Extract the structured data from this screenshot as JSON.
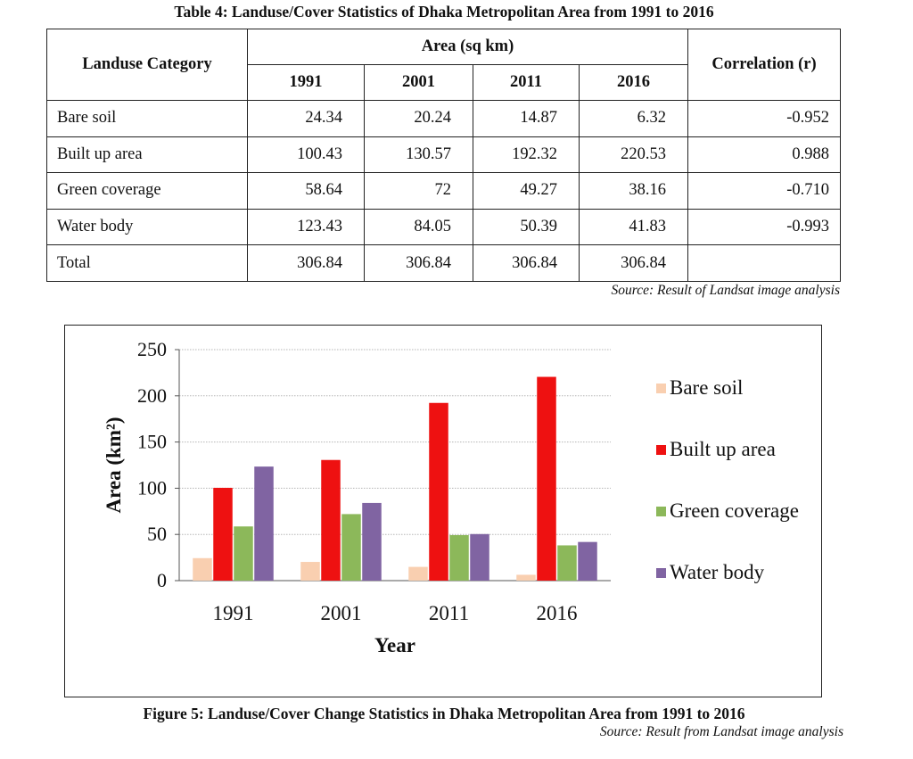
{
  "table": {
    "title": "Table 4: Landuse/Cover Statistics of Dhaka  Metropolitan Area from 1991 to 2016",
    "header_category": "Landuse Category",
    "header_area": "Area (sq km)",
    "header_correlation": "Correlation (r)",
    "years": [
      "1991",
      "2001",
      "2011",
      "2016"
    ],
    "rows": [
      {
        "category": "Bare soil",
        "values": [
          "24.34",
          "20.24",
          "14.87",
          "6.32"
        ],
        "correlation": "-0.952"
      },
      {
        "category": "Built up area",
        "values": [
          "100.43",
          "130.57",
          "192.32",
          "220.53"
        ],
        "correlation": "0.988"
      },
      {
        "category": "Green coverage",
        "values": [
          "58.64",
          "72",
          "49.27",
          "38.16"
        ],
        "correlation": "-0.710"
      },
      {
        "category": "Water body",
        "values": [
          "123.43",
          "84.05",
          "50.39",
          "41.83"
        ],
        "correlation": "-0.993"
      },
      {
        "category": "Total",
        "values": [
          "306.84",
          "306.84",
          "306.84",
          "306.84"
        ],
        "correlation": ""
      }
    ],
    "source": "Source: Result of Landsat image analysis"
  },
  "figure": {
    "caption": "Figure 5: Landuse/Cover Change Statistics in Dhaka Metropolitan Area from 1991 to 2016",
    "source": "Source: Result from Landsat image analysis"
  },
  "chart_data": {
    "type": "bar",
    "title": "",
    "xlabel": "Year",
    "ylabel": "Area (km²)",
    "ylim": [
      0,
      250
    ],
    "yticks": [
      0,
      50,
      100,
      150,
      200,
      250
    ],
    "grid": true,
    "legend_position": "right",
    "categories": [
      "1991",
      "2001",
      "2011",
      "2016"
    ],
    "series": [
      {
        "name": "Bare soil",
        "color": "#f9cfb0",
        "values": [
          24.34,
          20.24,
          14.87,
          6.32
        ]
      },
      {
        "name": "Built up area",
        "color": "#ee1111",
        "values": [
          100.43,
          130.57,
          192.32,
          220.53
        ]
      },
      {
        "name": "Green coverage",
        "color": "#8cb85a",
        "values": [
          58.64,
          72,
          49.27,
          38.16
        ]
      },
      {
        "name": "Water body",
        "color": "#8064a2",
        "values": [
          123.43,
          84.05,
          50.39,
          41.83
        ]
      }
    ]
  }
}
